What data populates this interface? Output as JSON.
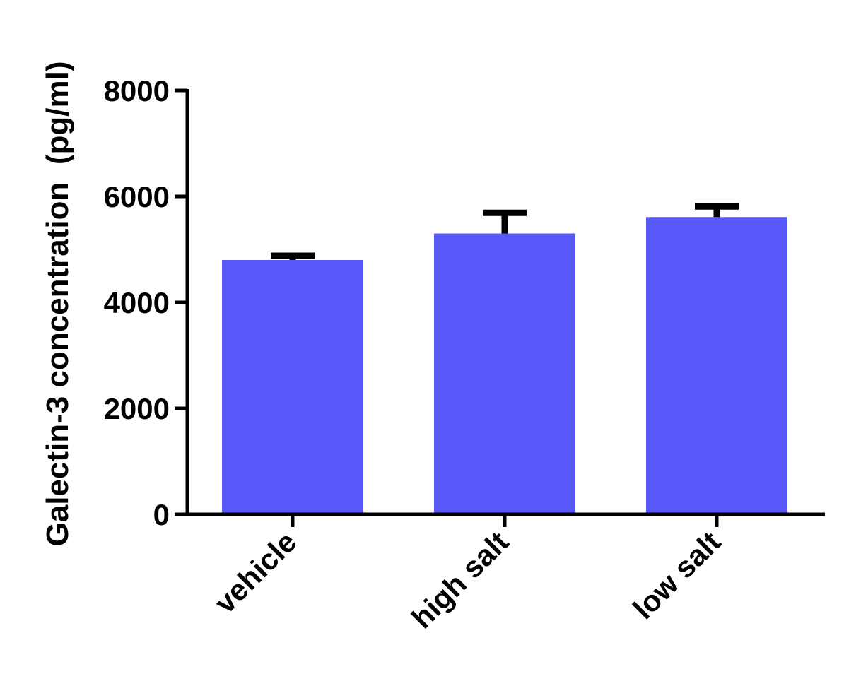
{
  "chart_data": {
    "type": "bar",
    "title": "",
    "xlabel": "",
    "ylabel": "Galectin-3 concentration  (pg/ml)",
    "categories": [
      "vehicle",
      "high salt",
      "low salt"
    ],
    "values": [
      4800,
      5300,
      5610
    ],
    "error_upper": [
      4880,
      5690,
      5810
    ],
    "ylim": [
      0,
      8000
    ],
    "yticks": [
      0,
      2000,
      4000,
      6000,
      8000
    ],
    "ytick_labels": [
      "0",
      "2000",
      "4000",
      "6000",
      "8000"
    ],
    "grid": false,
    "legend": "none",
    "bar_color": "#5858F8",
    "error_bar_color": "#000000"
  }
}
